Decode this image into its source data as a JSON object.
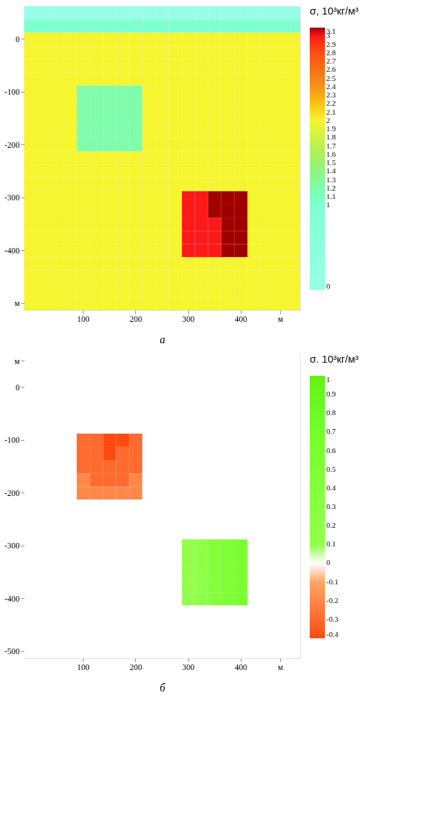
{
  "chart_data": [
    {
      "type": "heatmap",
      "xlabel": "а",
      "clabel": "σ, 10³кг/м³",
      "categories": [
        null,
        null,
        null,
        null,
        "100",
        null,
        null,
        null,
        "200",
        null,
        null,
        null,
        "300",
        null,
        null,
        null,
        "400",
        null,
        null,
        "м",
        null
      ],
      "y_categories": [
        null,
        null,
        "0",
        null,
        null,
        null,
        "-100",
        null,
        null,
        null,
        "-200",
        null,
        null,
        null,
        "-300",
        null,
        null,
        null,
        "-400",
        null,
        null,
        null,
        "м"
      ],
      "cells": [
        [
          0,
          0,
          0,
          0,
          0,
          0,
          0,
          0,
          0,
          0,
          0,
          0,
          0,
          0,
          0,
          0,
          0,
          0,
          0,
          0,
          0
        ],
        [
          1,
          1,
          1,
          1,
          1,
          1,
          1,
          1,
          1,
          1,
          1,
          1,
          1,
          1,
          1,
          1,
          1,
          1,
          1,
          1,
          1
        ],
        [
          2,
          2,
          2,
          2,
          2,
          2,
          2,
          2,
          2,
          2,
          2,
          2,
          2,
          2,
          2,
          2,
          2,
          2,
          2,
          2,
          2
        ],
        [
          2,
          2,
          2,
          2,
          2,
          2,
          2,
          2,
          2,
          2,
          2,
          2,
          2,
          2,
          2,
          2,
          2,
          2,
          2,
          2,
          2
        ],
        [
          2,
          2,
          2,
          2,
          2,
          2,
          2,
          2,
          2,
          2,
          2,
          2,
          2,
          2,
          2,
          2,
          2,
          2,
          2,
          2,
          2
        ],
        [
          2,
          2,
          2,
          2,
          2,
          2,
          2,
          2,
          2,
          2,
          2,
          2,
          2,
          2,
          2,
          2,
          2,
          2,
          2,
          2,
          2
        ],
        [
          2,
          2,
          2,
          2,
          1.2,
          1.2,
          1.2,
          1.2,
          1.2,
          2,
          2,
          2,
          2,
          2,
          2,
          2,
          2,
          2,
          2,
          2,
          2
        ],
        [
          2,
          2,
          2,
          2,
          1.2,
          1.2,
          1.2,
          1.2,
          1.2,
          2,
          2,
          2,
          2,
          2,
          2,
          2,
          2,
          2,
          2,
          2,
          2
        ],
        [
          2,
          2,
          2,
          2,
          1.2,
          1.2,
          1.2,
          1.2,
          1.2,
          2,
          2,
          2,
          2,
          2,
          2,
          2,
          2,
          2,
          2,
          2,
          2
        ],
        [
          2,
          2,
          2,
          2,
          1.2,
          1.2,
          1.2,
          1.2,
          1.2,
          2,
          2,
          2,
          2,
          2,
          2,
          2,
          2,
          2,
          2,
          2,
          2
        ],
        [
          2,
          2,
          2,
          2,
          1.2,
          1.2,
          1.2,
          1.2,
          1.2,
          2,
          2,
          2,
          2,
          2,
          2,
          2,
          2,
          2,
          2,
          2,
          2
        ],
        [
          2,
          2,
          2,
          2,
          2,
          2,
          2,
          2,
          2,
          2,
          2,
          2,
          2,
          2,
          2,
          2,
          2,
          2,
          2,
          2,
          2
        ],
        [
          2,
          2,
          2,
          2,
          2,
          2,
          2,
          2,
          2,
          2,
          2,
          2,
          2,
          2,
          2,
          2,
          2,
          2,
          2,
          2,
          2
        ],
        [
          2,
          2,
          2,
          2,
          2,
          2,
          2,
          2,
          2,
          2,
          2,
          2,
          2,
          2,
          2,
          2,
          2,
          2,
          2,
          2,
          2
        ],
        [
          2,
          2,
          2,
          2,
          2,
          2,
          2,
          2,
          2,
          2,
          2,
          2,
          3,
          3,
          3.1,
          3.1,
          3.1,
          2,
          2,
          2,
          2
        ],
        [
          2,
          2,
          2,
          2,
          2,
          2,
          2,
          2,
          2,
          2,
          2,
          2,
          3,
          3,
          3.1,
          3.1,
          3.1,
          2,
          2,
          2,
          2
        ],
        [
          2,
          2,
          2,
          2,
          2,
          2,
          2,
          2,
          2,
          2,
          2,
          2,
          3,
          3,
          3,
          3.1,
          3.1,
          2,
          2,
          2,
          2
        ],
        [
          2,
          2,
          2,
          2,
          2,
          2,
          2,
          2,
          2,
          2,
          2,
          2,
          3,
          3,
          3,
          3.1,
          3.1,
          2,
          2,
          2,
          2
        ],
        [
          2,
          2,
          2,
          2,
          2,
          2,
          2,
          2,
          2,
          2,
          2,
          2,
          3,
          3,
          3,
          3.1,
          3.1,
          2,
          2,
          2,
          2
        ],
        [
          2,
          2,
          2,
          2,
          2,
          2,
          2,
          2,
          2,
          2,
          2,
          2,
          2,
          2,
          2,
          2,
          2,
          2,
          2,
          2,
          2
        ],
        [
          2,
          2,
          2,
          2,
          2,
          2,
          2,
          2,
          2,
          2,
          2,
          2,
          2,
          2,
          2,
          2,
          2,
          2,
          2,
          2,
          2
        ],
        [
          2,
          2,
          2,
          2,
          2,
          2,
          2,
          2,
          2,
          2,
          2,
          2,
          2,
          2,
          2,
          2,
          2,
          2,
          2,
          2,
          2
        ],
        [
          2,
          2,
          2,
          2,
          2,
          2,
          2,
          2,
          2,
          2,
          2,
          2,
          2,
          2,
          2,
          2,
          2,
          2,
          2,
          2,
          2
        ]
      ],
      "clim": [
        0,
        3.1
      ],
      "cticks": [
        0,
        1,
        1.1,
        1.2,
        1.3,
        1.4,
        1.5,
        1.6,
        1.7,
        1.8,
        1.9,
        2,
        2.1,
        2.2,
        2.3,
        2.4,
        2.5,
        2.6,
        2.7,
        2.8,
        2.9,
        3,
        3.1
      ]
    },
    {
      "type": "heatmap",
      "xlabel": "б",
      "clabel": "σ. 10³кг/м³",
      "categories": [
        null,
        null,
        null,
        null,
        "100",
        null,
        null,
        null,
        "200",
        null,
        null,
        null,
        "300",
        null,
        null,
        null,
        "400",
        null,
        null,
        "м",
        null
      ],
      "y_categories": [
        "м",
        null,
        "0",
        null,
        null,
        null,
        "-100",
        null,
        null,
        null,
        "-200",
        null,
        null,
        null,
        "-300",
        null,
        null,
        null,
        "-400",
        null,
        null,
        null,
        "-500"
      ],
      "cells": [
        [
          0,
          0,
          0,
          0,
          0,
          0,
          0,
          0,
          0,
          0,
          0,
          0,
          0,
          0,
          0,
          0,
          0,
          0,
          0,
          0,
          0
        ],
        [
          0,
          0,
          0,
          0,
          0,
          0,
          0,
          0,
          0,
          0,
          0,
          0,
          0,
          0,
          0,
          0,
          0,
          0,
          0,
          0,
          0
        ],
        [
          0,
          0,
          0,
          0,
          0,
          0,
          0,
          0,
          0,
          0,
          0,
          0,
          0,
          0,
          0,
          0,
          0,
          0,
          0,
          0,
          0
        ],
        [
          0,
          0,
          0,
          0,
          0,
          0,
          0,
          0,
          0,
          0,
          0,
          0,
          0,
          0,
          0,
          0,
          0,
          0,
          0,
          0,
          0
        ],
        [
          0,
          0,
          0,
          0,
          0,
          0,
          0,
          0,
          0,
          0,
          0,
          0,
          0,
          0,
          0,
          0,
          0,
          0,
          0,
          0,
          0
        ],
        [
          0,
          0,
          0,
          0,
          0,
          0,
          0,
          0,
          0,
          0,
          0,
          0,
          0,
          0,
          0,
          0,
          0,
          0,
          0,
          0,
          0
        ],
        [
          0,
          0,
          0,
          0,
          -0.3,
          -0.3,
          -0.4,
          -0.4,
          -0.3,
          0,
          0,
          0,
          0,
          0,
          0,
          0,
          0,
          0,
          0,
          0,
          0
        ],
        [
          0,
          0,
          0,
          0,
          -0.3,
          -0.3,
          -0.4,
          -0.3,
          -0.3,
          0,
          0,
          0,
          0,
          0,
          0,
          0,
          0,
          0,
          0,
          0,
          0
        ],
        [
          0,
          0,
          0,
          0,
          -0.3,
          -0.3,
          -0.3,
          -0.3,
          -0.3,
          0,
          0,
          0,
          0,
          0,
          0,
          0,
          0,
          0,
          0,
          0,
          0
        ],
        [
          0,
          0,
          0,
          0,
          -0.2,
          -0.3,
          -0.3,
          -0.3,
          -0.2,
          0,
          0,
          0,
          0,
          0,
          0,
          0,
          0,
          0,
          0,
          0,
          0
        ],
        [
          0,
          0,
          0,
          0,
          -0.2,
          -0.2,
          -0.2,
          -0.2,
          -0.2,
          0,
          0,
          0,
          0,
          0,
          0,
          0,
          0,
          0,
          0,
          0,
          0
        ],
        [
          0,
          0,
          0,
          0,
          0,
          0,
          0,
          0,
          0,
          0,
          0,
          0,
          0,
          0,
          0,
          0,
          0,
          0,
          0,
          0,
          0
        ],
        [
          0,
          0,
          0,
          0,
          0,
          0,
          0,
          0,
          0,
          0,
          0,
          0,
          0,
          0,
          0,
          0,
          0,
          0,
          0,
          0,
          0
        ],
        [
          0,
          0,
          0,
          0,
          0,
          0,
          0,
          0,
          0,
          0,
          0,
          0,
          0,
          0,
          0,
          0,
          0,
          0,
          0,
          0,
          0
        ],
        [
          0,
          0,
          0,
          0,
          0,
          0,
          0,
          0,
          0,
          0,
          0,
          0,
          0.1,
          0.2,
          0.4,
          0.5,
          0.6,
          0,
          0,
          0,
          0
        ],
        [
          0,
          0,
          0,
          0,
          0,
          0,
          0,
          0,
          0,
          0,
          0,
          0,
          0.1,
          0.2,
          0.4,
          0.5,
          0.6,
          0,
          0,
          0,
          0
        ],
        [
          0,
          0,
          0,
          0,
          0,
          0,
          0,
          0,
          0,
          0,
          0,
          0,
          0.1,
          0.2,
          0.4,
          0.5,
          0.6,
          0,
          0,
          0,
          0
        ],
        [
          0,
          0,
          0,
          0,
          0,
          0,
          0,
          0,
          0,
          0,
          0,
          0,
          0.1,
          0.2,
          0.4,
          0.5,
          0.6,
          0,
          0,
          0,
          0
        ],
        [
          0,
          0,
          0,
          0,
          0,
          0,
          0,
          0,
          0,
          0,
          0,
          0,
          0.1,
          0.2,
          0.4,
          0.5,
          0.6,
          0,
          0,
          0,
          0
        ],
        [
          0,
          0,
          0,
          0,
          0,
          0,
          0,
          0,
          0,
          0,
          0,
          0,
          0,
          0,
          0,
          0,
          0,
          0,
          0,
          0,
          0
        ],
        [
          0,
          0,
          0,
          0,
          0,
          0,
          0,
          0,
          0,
          0,
          0,
          0,
          0,
          0,
          0,
          0,
          0,
          0,
          0,
          0,
          0
        ],
        [
          0,
          0,
          0,
          0,
          0,
          0,
          0,
          0,
          0,
          0,
          0,
          0,
          0,
          0,
          0,
          0,
          0,
          0,
          0,
          0,
          0
        ],
        [
          0,
          0,
          0,
          0,
          0,
          0,
          0,
          0,
          0,
          0,
          0,
          0,
          0,
          0,
          0,
          0,
          0,
          0,
          0,
          0,
          0
        ]
      ],
      "clim": [
        -0.4,
        1
      ],
      "cticks": [
        -0.4,
        -0.3,
        -0.2,
        -0.1,
        0,
        0.1,
        0.2,
        0.3,
        0.4,
        0.5,
        0.6,
        0.7,
        0.8,
        0.9,
        1
      ]
    }
  ]
}
